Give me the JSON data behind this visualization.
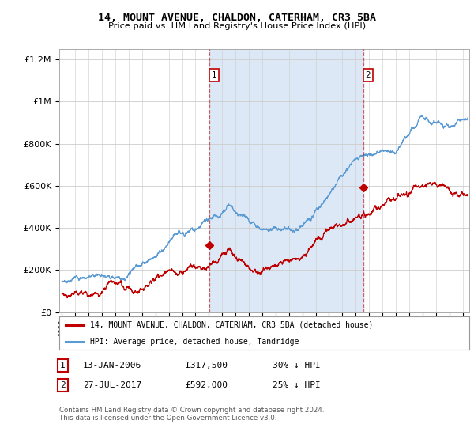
{
  "title": "14, MOUNT AVENUE, CHALDON, CATERHAM, CR3 5BA",
  "subtitle": "Price paid vs. HM Land Registry's House Price Index (HPI)",
  "legend_line1": "14, MOUNT AVENUE, CHALDON, CATERHAM, CR3 5BA (detached house)",
  "legend_line2": "HPI: Average price, detached house, Tandridge",
  "transaction1_label": "1",
  "transaction1_date": "13-JAN-2006",
  "transaction1_price": "£317,500",
  "transaction1_hpi": "30% ↓ HPI",
  "transaction2_label": "2",
  "transaction2_date": "27-JUL-2017",
  "transaction2_price": "£592,000",
  "transaction2_hpi": "25% ↓ HPI",
  "footnote": "Contains HM Land Registry data © Crown copyright and database right 2024.\nThis data is licensed under the Open Government Licence v3.0.",
  "background_color": "#ffffff",
  "plot_bg_color": "#ffffff",
  "shade_color": "#dce8f5",
  "hpi_line_color": "#5b9bd5",
  "price_line_color": "#c00000",
  "vline_color": "#c00000",
  "vline_alpha": 0.6,
  "marker1_x": 2006.04,
  "marker1_y": 317500,
  "marker2_x": 2017.57,
  "marker2_y": 592000,
  "ylim_max": 1250000,
  "xlim_min": 1994.8,
  "xlim_max": 2025.5,
  "yticks": [
    0,
    200000,
    400000,
    600000,
    800000,
    1000000,
    1200000
  ],
  "ytick_labels": [
    "£0",
    "£200K",
    "£400K",
    "£600K",
    "£800K",
    "£1M",
    "£1.2M"
  ]
}
